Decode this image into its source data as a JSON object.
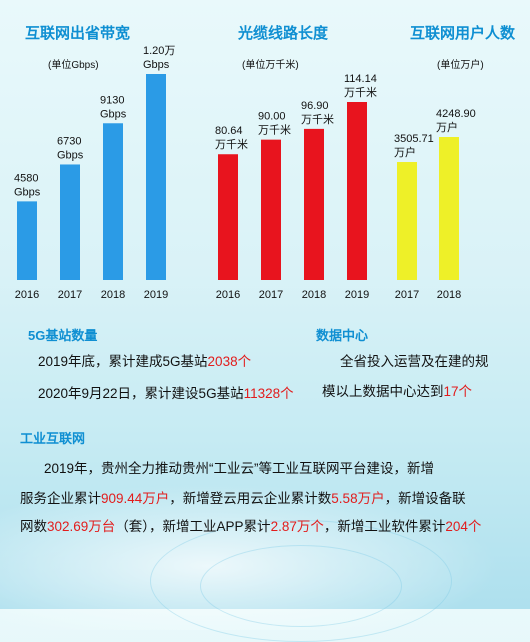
{
  "charts": {
    "bandwidth": {
      "title": "互联网出省带宽",
      "unit": "(单位Gbps)"
    },
    "cable": {
      "title": "光缆线路长度",
      "unit": "(单位万千米)"
    },
    "users": {
      "title": "互联网用户人数",
      "unit": "(单位万户)"
    }
  },
  "chart_data": [
    {
      "type": "bar",
      "title": "互联网出省带宽",
      "unit": "(单位Gbps)",
      "categories": [
        "2016",
        "2017",
        "2018",
        "2019"
      ],
      "values": [
        4580,
        6730,
        9130,
        12000
      ],
      "value_labels": [
        [
          "4580",
          "Gbps"
        ],
        [
          "6730",
          "Gbps"
        ],
        [
          "9130",
          "Gbps"
        ],
        [
          "1.20万",
          "Gbps"
        ]
      ],
      "color": "#2b9be6"
    },
    {
      "type": "bar",
      "title": "光缆线路长度",
      "unit": "(单位万千米)",
      "categories": [
        "2016",
        "2017",
        "2018",
        "2019"
      ],
      "values": [
        80.64,
        90.0,
        96.9,
        114.14
      ],
      "value_labels": [
        [
          "80.64",
          "万千米"
        ],
        [
          "90.00",
          "万千米"
        ],
        [
          "96.90",
          "万千米"
        ],
        [
          "114.14",
          "万千米"
        ]
      ],
      "color": "#e8141e"
    },
    {
      "type": "bar",
      "title": "互联网用户人数",
      "unit": "(单位万户)",
      "categories": [
        "2017",
        "2018"
      ],
      "values": [
        3505.71,
        4248.9
      ],
      "value_labels": [
        [
          "3505.71",
          "万户"
        ],
        [
          "4248.90",
          "万户"
        ]
      ],
      "color": "#eef028"
    }
  ],
  "sections": {
    "five_g": {
      "title": "5G基站数量",
      "line1": {
        "a": "2019年底，累计建成5G基站",
        "b": "2038个"
      },
      "line2": {
        "a": "2020年9月22日，累计建设5G基站",
        "b": "11328个"
      }
    },
    "data_center": {
      "title": "数据中心",
      "line1": "全省投入运营及在建的规",
      "line2": {
        "a": "模以上数据中心达到",
        "b": "17个"
      }
    },
    "industrial": {
      "title": "工业互联网",
      "line1": "2019年，贵州全力推动贵州“工业云”等工业互联网平台建设，新增",
      "line2": {
        "a": "服务企业累计",
        "b": "909.44万户",
        "c": "，新增登云用云企业累计数",
        "d": "5.58万户",
        "e": "，新增设备联"
      },
      "line3": {
        "a": "网数",
        "b": "302.69万台",
        "c": "（套），新增工业APP累计",
        "d": "2.87万个",
        "e": "，新增工业软件累计",
        "f": "204个"
      }
    }
  }
}
